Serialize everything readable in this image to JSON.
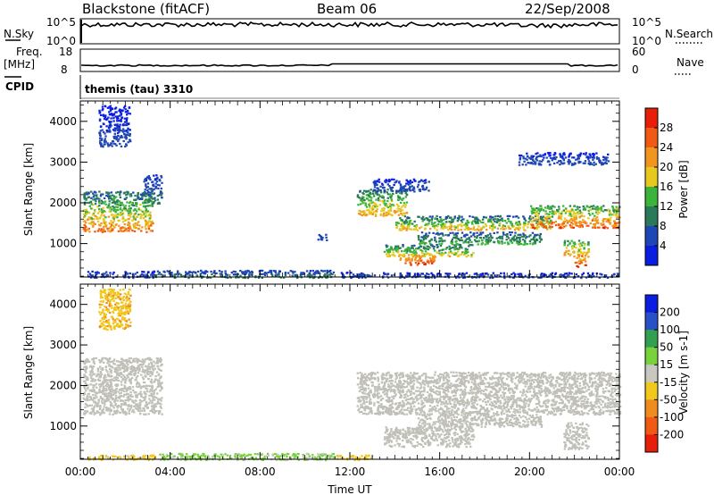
{
  "header": {
    "station": "Blackstone (fitACF)",
    "beam": "Beam 06",
    "date": "22/Sep/2008"
  },
  "top_panels": {
    "nsky_label": "N.Sky",
    "nsky_ticks": [
      "10^5",
      "10^0"
    ],
    "nsky_right_ticks": [
      "10^5",
      "10^0"
    ],
    "nsearch_label": "N.Search",
    "freq_label": "Freq.",
    "freq_unit": "[MHz]",
    "freq_ticks": [
      "18",
      "8"
    ],
    "nave_ticks": [
      "60",
      "0"
    ],
    "nave_label": "Nave",
    "cpid_label": "CPID",
    "cpid_text": "themis (tau) 3310"
  },
  "colors": {
    "power": [
      "#0a1ee0",
      "#1e46b4",
      "#2a7a5a",
      "#3cb43c",
      "#e6c81e",
      "#f0961e",
      "#f05a14",
      "#e61e0a"
    ],
    "velocity": [
      "#0a1ee0",
      "#2850c8",
      "#32a050",
      "#78d23c",
      "#c8c8c0",
      "#f0c81e",
      "#f08c1e",
      "#f05a14",
      "#e61e0a"
    ],
    "ground_scatter": "#c0c0b8"
  },
  "chart_data": [
    {
      "type": "heatmap",
      "name": "power",
      "ylabel": "Slant Range [km]",
      "yticks": [
        "1000",
        "2000",
        "3000",
        "4000"
      ],
      "ylim": [
        180,
        4500
      ],
      "xlim_hours": [
        0,
        24
      ],
      "xticks": [
        "00:00",
        "04:00",
        "08:00",
        "12:00",
        "16:00",
        "20:00",
        "00:00"
      ],
      "colorbar_label": "Power [dB]",
      "colorbar_ticks": [
        "4",
        "8",
        "12",
        "16",
        "20",
        "24",
        "28"
      ],
      "colorbar_range": [
        0,
        32
      ],
      "regions": [
        {
          "t0": 0.1,
          "t1": 3.2,
          "r0": 1300,
          "r1": 2300,
          "v0": 4,
          "v1": 28
        },
        {
          "t0": 2.8,
          "t1": 3.6,
          "r0": 2000,
          "r1": 2700,
          "v0": 2,
          "v1": 12
        },
        {
          "t0": 0.3,
          "t1": 3.3,
          "r0": 180,
          "r1": 340,
          "v0": 2,
          "v1": 8
        },
        {
          "t0": 3.3,
          "t1": 11.3,
          "r0": 180,
          "r1": 360,
          "v0": 3,
          "v1": 12
        },
        {
          "t0": 11.5,
          "t1": 12.5,
          "r0": 180,
          "r1": 320,
          "v0": 2,
          "v1": 8
        },
        {
          "t0": 12.3,
          "t1": 14.5,
          "r0": 1700,
          "r1": 2350,
          "v0": 6,
          "v1": 24
        },
        {
          "t0": 13.0,
          "t1": 15.5,
          "r0": 2300,
          "r1": 2600,
          "v0": 2,
          "v1": 8
        },
        {
          "t0": 14.0,
          "t1": 21.0,
          "r0": 1350,
          "r1": 1700,
          "v0": 4,
          "v1": 24
        },
        {
          "t0": 20.0,
          "t1": 24.0,
          "r0": 1400,
          "r1": 1950,
          "v0": 8,
          "v1": 30
        },
        {
          "t0": 13.5,
          "t1": 17.5,
          "r0": 700,
          "r1": 1000,
          "v0": 6,
          "v1": 22
        },
        {
          "t0": 14.2,
          "t1": 15.8,
          "r0": 500,
          "r1": 750,
          "v0": 18,
          "v1": 30
        },
        {
          "t0": 15.0,
          "t1": 20.5,
          "r0": 1000,
          "r1": 1300,
          "v0": 4,
          "v1": 16
        },
        {
          "t0": 21.5,
          "t1": 22.6,
          "r0": 700,
          "r1": 1100,
          "v0": 8,
          "v1": 26
        },
        {
          "t0": 22.0,
          "t1": 22.5,
          "r0": 450,
          "r1": 700,
          "v0": 16,
          "v1": 30
        },
        {
          "t0": 12.0,
          "t1": 24.0,
          "r0": 180,
          "r1": 300,
          "v0": 2,
          "v1": 8
        },
        {
          "t0": 10.5,
          "t1": 11.0,
          "r0": 1100,
          "r1": 1250,
          "v0": 4,
          "v1": 8
        },
        {
          "t0": 0.8,
          "t1": 2.2,
          "r0": 3400,
          "r1": 4400,
          "v0": 2,
          "v1": 6
        },
        {
          "t0": 19.5,
          "t1": 23.5,
          "r0": 2950,
          "r1": 3250,
          "v0": 2,
          "v1": 8
        }
      ]
    },
    {
      "type": "heatmap",
      "name": "velocity",
      "ylabel": "Slant Range [km]",
      "yticks": [
        "1000",
        "2000",
        "3000",
        "4000"
      ],
      "ylim": [
        180,
        4500
      ],
      "xlim_hours": [
        0,
        24
      ],
      "xticks": [
        "00:00",
        "04:00",
        "08:00",
        "12:00",
        "16:00",
        "20:00",
        "00:00"
      ],
      "xlabel": "Time UT",
      "colorbar_label": "Velocity [m s-1]",
      "colorbar_ticks": [
        "200",
        "100",
        "50",
        "15",
        "-15",
        "-50",
        "-100",
        "-200"
      ],
      "regions_ground_scatter": [
        {
          "t0": 0.1,
          "t1": 3.6,
          "r0": 1300,
          "r1": 2700
        },
        {
          "t0": 12.3,
          "t1": 24.0,
          "r0": 1300,
          "r1": 2350
        },
        {
          "t0": 13.5,
          "t1": 17.5,
          "r0": 500,
          "r1": 1000
        },
        {
          "t0": 15.0,
          "t1": 20.5,
          "r0": 1000,
          "r1": 1300
        },
        {
          "t0": 21.5,
          "t1": 22.6,
          "r0": 450,
          "r1": 1100
        }
      ],
      "regions_ionospheric": [
        {
          "t0": 3.5,
          "t1": 11.3,
          "r0": 180,
          "r1": 340,
          "v0": 5,
          "v1": 40
        },
        {
          "t0": 0.3,
          "t1": 3.3,
          "r0": 180,
          "r1": 300,
          "v0": -40,
          "v1": -10
        },
        {
          "t0": 11.4,
          "t1": 13.0,
          "r0": 180,
          "r1": 300,
          "v0": -40,
          "v1": -10
        },
        {
          "t0": 0.8,
          "t1": 2.2,
          "r0": 3400,
          "r1": 4400,
          "v0": -60,
          "v1": -20
        }
      ]
    }
  ]
}
